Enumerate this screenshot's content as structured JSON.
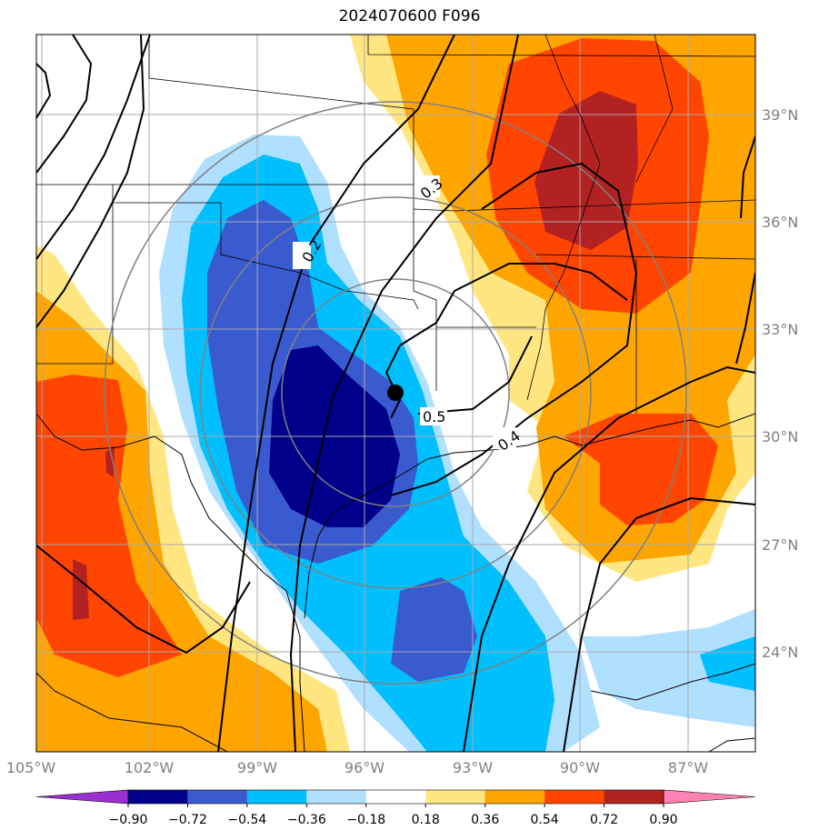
{
  "title": "2024070600 F096",
  "longitude_labels": [
    "105°W",
    "102°W",
    "99°W",
    "96°W",
    "93°W",
    "90°W",
    "87°W"
  ],
  "latitude_labels": [
    "39°N",
    "36°N",
    "33°N",
    "30°N",
    "27°N",
    "24°N"
  ],
  "colorbar": {
    "ticks": [
      "−0.90",
      "−0.72",
      "−0.54",
      "−0.36",
      "−0.18",
      "0.18",
      "0.36",
      "0.54",
      "0.72",
      "0.90"
    ],
    "colors": [
      "#9b30d0",
      "#00008b",
      "#3a5bd0",
      "#00bfff",
      "#b0e0ff",
      "#ffffff",
      "#ffe680",
      "#ffa500",
      "#ff4500",
      "#b22222",
      "#ff82b4"
    ]
  },
  "contour_labels": [
    "0.2",
    "0.3",
    "0.4",
    "0.5"
  ],
  "marker": {
    "type": "filled-circle",
    "color": "#000000"
  }
}
